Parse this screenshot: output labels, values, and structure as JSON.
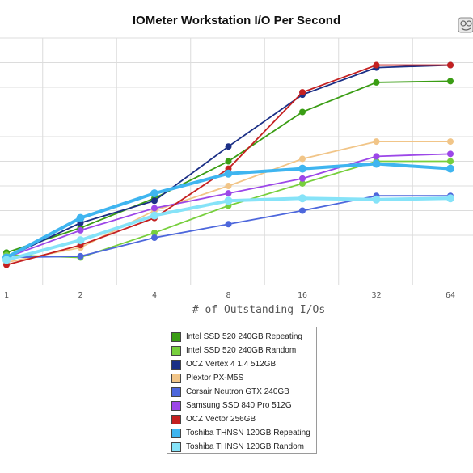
{
  "chart_data": {
    "type": "line",
    "title": "IOMeter Workstation I/O Per Second",
    "xlabel": "# of Outstanding I/Os",
    "ylabel": "",
    "grid": true,
    "legend_position": "bottom",
    "categories": [
      "1",
      "2",
      "4",
      "8",
      "16",
      "32",
      "64"
    ],
    "series": [
      {
        "name": "Intel SSD 520 240GB Repeating",
        "color": "#3a9d14",
        "values": [
          7.8,
          8.8,
          10.0,
          11.5,
          13.5,
          14.7,
          14.75
        ]
      },
      {
        "name": "Intel SSD 520 240GB Random",
        "color": "#77cf3d",
        "values": [
          7.7,
          7.6,
          8.6,
          9.7,
          10.6,
          11.5,
          11.5
        ]
      },
      {
        "name": "OCZ Vertex 4 1.4 512GB",
        "color": "#1b2f86",
        "values": [
          7.6,
          9.0,
          9.9,
          12.1,
          14.2,
          15.3,
          15.4
        ]
      },
      {
        "name": "Plextor PX-M5S",
        "color": "#f1c588",
        "values": [
          7.4,
          8.0,
          9.5,
          10.5,
          11.6,
          12.3,
          12.3
        ]
      },
      {
        "name": "Corsair Neutron GTX 240GB",
        "color": "#4d67dc",
        "values": [
          7.6,
          7.65,
          8.4,
          8.95,
          9.5,
          10.1,
          10.1
        ]
      },
      {
        "name": "Samsung SSD 840 Pro 512G",
        "color": "#9c47e8",
        "values": [
          7.6,
          8.7,
          9.6,
          10.2,
          10.8,
          11.7,
          11.8
        ]
      },
      {
        "name": "OCZ Vector 256GB",
        "color": "#c42020",
        "values": [
          7.3,
          8.1,
          9.2,
          11.2,
          14.3,
          15.4,
          15.4
        ]
      },
      {
        "name": "Toshiba THNSN 120GB Repeating",
        "color": "#3fb5f0",
        "values": [
          7.6,
          9.2,
          10.2,
          11.0,
          11.2,
          11.4,
          11.2
        ]
      },
      {
        "name": "Toshiba THNSN 120GB Random",
        "color": "#86e3f8",
        "values": [
          7.5,
          8.3,
          9.3,
          9.9,
          10.0,
          9.95,
          10.0
        ]
      }
    ],
    "ylim": [
      6.5,
      16.5
    ]
  }
}
